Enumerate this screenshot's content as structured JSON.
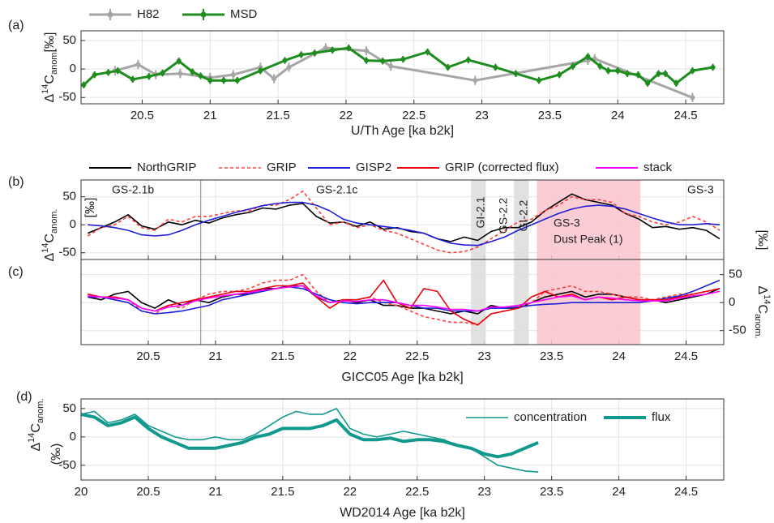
{
  "chart_data": [
    {
      "type": "line",
      "panel_label": "(a)",
      "xlabel": "U/Th Age [ka b2k]",
      "ylabel": {
        "parts": [
          "Δ",
          "14",
          "C",
          "anom."
        ],
        "unit": "[‰]"
      },
      "xlim": [
        20.05,
        24.78
      ],
      "xticks": [
        20.5,
        21,
        21.5,
        22,
        22.5,
        23,
        23.5,
        24,
        24.5
      ],
      "ylim": [
        -61,
        67
      ],
      "yticks": [
        -50,
        0,
        50
      ],
      "grid": true,
      "legend": "top",
      "series": [
        {
          "name": "H82",
          "color": "#a6a6a6",
          "error": 8,
          "x": [
            20.3,
            20.47,
            20.6,
            20.78,
            21.0,
            21.17,
            21.37,
            21.47,
            21.58,
            21.85,
            22.15,
            22.33,
            22.95,
            23.78,
            23.83,
            24.55
          ],
          "values": [
            -3,
            8,
            -10,
            -8,
            -15,
            -10,
            3,
            -17,
            3,
            37,
            32,
            5,
            -20,
            15,
            18,
            -50
          ]
        },
        {
          "name": "MSD",
          "color": "#1e8c1e",
          "error": 6,
          "x": [
            20.07,
            20.15,
            20.25,
            20.32,
            20.43,
            20.55,
            20.65,
            20.77,
            20.87,
            20.93,
            21.0,
            21.1,
            21.2,
            21.37,
            21.55,
            21.67,
            21.77,
            21.9,
            22.02,
            22.15,
            22.27,
            22.42,
            22.6,
            22.75,
            22.9,
            23.1,
            23.25,
            23.42,
            23.57,
            23.67,
            23.78,
            23.87,
            23.93,
            24.0,
            24.07,
            24.15,
            24.22,
            24.3,
            24.35,
            24.43,
            24.55,
            24.7
          ],
          "values": [
            -28,
            -10,
            -6,
            -3,
            -18,
            -13,
            -7,
            14,
            -5,
            -12,
            -20,
            -20,
            -20,
            -3,
            15,
            25,
            28,
            33,
            37,
            15,
            14,
            17,
            30,
            3,
            16,
            3,
            -8,
            -20,
            -10,
            5,
            22,
            5,
            -3,
            -3,
            -8,
            -10,
            -25,
            -8,
            -8,
            -25,
            -3,
            3
          ]
        }
      ]
    },
    {
      "type": "line",
      "panel_labels": [
        "(b)",
        "(c)"
      ],
      "xlabel": "GICC05 Age [ka b2k]",
      "ylabel": {
        "parts": [
          "Δ",
          "14",
          "C",
          "anom."
        ],
        "unit": "[‰]"
      },
      "y2label": {
        "parts": [
          "Δ",
          "14",
          "C",
          "anom."
        ],
        "unit": "[‰]"
      },
      "xlim": [
        20,
        24.78
      ],
      "xticks": [
        20.5,
        21,
        21.5,
        22,
        22.5,
        23,
        23.5,
        24,
        24.5
      ],
      "ylim": [
        -62,
        80
      ],
      "yticks": [
        -50,
        0,
        50
      ],
      "y2lim": [
        -75,
        77
      ],
      "y2ticks": [
        -50,
        0,
        50
      ],
      "grid": true,
      "boundary": 20.89,
      "regions": [
        {
          "x": [
            22.9,
            23.01
          ],
          "color": "#dcdcdc"
        },
        {
          "x": [
            23.22,
            23.33
          ],
          "color": "#dcdcdc"
        },
        {
          "x": [
            23.39,
            24.16
          ],
          "color": "#f9c3cc"
        }
      ],
      "annotations": [
        "GS-2.1b",
        "GS-2.1c",
        "GS-3",
        "GI-2.1",
        "GS-2.2",
        "GI-2.2",
        "GS-3",
        "Dust Peak (1)"
      ],
      "x": [
        20.05,
        20.15,
        20.25,
        20.35,
        20.45,
        20.55,
        20.65,
        20.75,
        20.85,
        20.95,
        21.05,
        21.15,
        21.25,
        21.35,
        21.45,
        21.55,
        21.65,
        21.75,
        21.85,
        21.95,
        22.05,
        22.15,
        22.25,
        22.35,
        22.45,
        22.55,
        22.65,
        22.75,
        22.85,
        22.95,
        23.05,
        23.15,
        23.25,
        23.35,
        23.45,
        23.55,
        23.65,
        23.75,
        23.85,
        23.95,
        24.05,
        24.15,
        24.25,
        24.35,
        24.45,
        24.55,
        24.65,
        24.75
      ],
      "series": [
        {
          "color": "#000000",
          "axis": "y",
          "values": [
            -15,
            -5,
            5,
            18,
            -2,
            -8,
            5,
            0,
            8,
            3,
            12,
            18,
            22,
            30,
            28,
            35,
            38,
            15,
            3,
            5,
            -3,
            5,
            -8,
            -5,
            -12,
            -15,
            -25,
            -30,
            -22,
            -28,
            -12,
            -5,
            -5,
            5,
            25,
            40,
            55,
            45,
            40,
            35,
            20,
            10,
            -5,
            -3,
            -8,
            -5,
            -10,
            -25
          ]
        },
        {
          "color": "#ff3b3b",
          "axis": "y",
          "dashed": true,
          "values": [
            -20,
            -5,
            0,
            15,
            -5,
            -10,
            10,
            5,
            15,
            15,
            20,
            25,
            25,
            35,
            35,
            45,
            60,
            30,
            0,
            5,
            -5,
            0,
            -10,
            -15,
            -25,
            -35,
            -45,
            -50,
            -48,
            -40,
            -25,
            -10,
            5,
            10,
            25,
            35,
            50,
            45,
            45,
            40,
            20,
            15,
            5,
            0,
            5,
            15,
            5,
            -10
          ]
        },
        {
          "color": "#1f1fd6",
          "axis": "y",
          "values": [
            0,
            -2,
            -5,
            -10,
            -18,
            -20,
            -18,
            -10,
            0,
            8,
            15,
            22,
            28,
            34,
            38,
            40,
            40,
            35,
            25,
            10,
            3,
            0,
            -3,
            -6,
            -10,
            -15,
            -25,
            -33,
            -36,
            -37,
            -30,
            -22,
            -10,
            0,
            10,
            20,
            28,
            33,
            35,
            33,
            28,
            20,
            12,
            5,
            0,
            0,
            2,
            0
          ]
        },
        {
          "name": "NorthGRIP",
          "color": "#000000",
          "axis": "y2",
          "values": [
            10,
            5,
            15,
            20,
            0,
            -10,
            5,
            -5,
            5,
            0,
            10,
            15,
            15,
            25,
            25,
            30,
            30,
            10,
            0,
            5,
            0,
            5,
            -5,
            -5,
            -10,
            -10,
            -15,
            -20,
            -15,
            -20,
            -5,
            -10,
            -10,
            0,
            10,
            15,
            20,
            10,
            15,
            15,
            10,
            5,
            5,
            0,
            5,
            10,
            15,
            25
          ]
        },
        {
          "name": "GRIP",
          "color": "#ff3b3b",
          "axis": "y2",
          "dashed": true,
          "values": [
            15,
            10,
            10,
            5,
            -15,
            -20,
            -5,
            -10,
            5,
            15,
            20,
            20,
            25,
            35,
            40,
            40,
            50,
            20,
            0,
            5,
            5,
            10,
            0,
            -5,
            -15,
            -25,
            -30,
            -35,
            -35,
            -40,
            -20,
            -15,
            -10,
            0,
            20,
            25,
            30,
            20,
            20,
            15,
            10,
            10,
            5,
            10,
            15,
            15,
            20,
            25
          ]
        },
        {
          "name": "GISP2",
          "color": "#1f1fd6",
          "axis": "y2",
          "values": [
            10,
            10,
            5,
            0,
            -15,
            -20,
            -18,
            -15,
            -10,
            -5,
            5,
            10,
            15,
            20,
            25,
            28,
            25,
            15,
            5,
            0,
            -2,
            0,
            0,
            0,
            -5,
            -10,
            -10,
            -15,
            -15,
            -15,
            -10,
            -10,
            -8,
            -5,
            -3,
            -2,
            0,
            0,
            0,
            0,
            0,
            0,
            3,
            8,
            12,
            20,
            30,
            40
          ]
        },
        {
          "name": "GRIP (corrected flux)",
          "color": "#e8000b",
          "axis": "y2",
          "values": [
            15,
            10,
            10,
            5,
            -10,
            -15,
            -5,
            0,
            5,
            10,
            15,
            20,
            20,
            25,
            30,
            30,
            35,
            10,
            -10,
            5,
            5,
            10,
            40,
            0,
            -10,
            25,
            20,
            -15,
            -30,
            -40,
            -20,
            -15,
            -10,
            10,
            20,
            10,
            15,
            5,
            10,
            5,
            10,
            5,
            5,
            5,
            10,
            15,
            20,
            25
          ]
        },
        {
          "name": "stack",
          "color": "#ff00ff",
          "axis": "y2",
          "values": [
            12,
            10,
            8,
            5,
            -10,
            -15,
            -8,
            -5,
            3,
            8,
            12,
            15,
            18,
            22,
            25,
            28,
            30,
            12,
            0,
            3,
            2,
            5,
            5,
            0,
            -5,
            -5,
            -8,
            -12,
            -12,
            -15,
            -8,
            -8,
            -5,
            0,
            5,
            10,
            12,
            5,
            10,
            8,
            5,
            3,
            3,
            3,
            8,
            12,
            15,
            20
          ]
        }
      ]
    },
    {
      "type": "line",
      "panel_label": "(d)",
      "xlabel": "WD2014 Age [ka b2k]",
      "ylabel": {
        "parts": [
          "Δ",
          "14",
          "C",
          "anom."
        ],
        "unit": "(‰)"
      },
      "xlim": [
        20,
        24.78
      ],
      "xticks": [
        20,
        20.5,
        21,
        21.5,
        22,
        22.5,
        23,
        23.5,
        24,
        24.5
      ],
      "ylim": [
        -76,
        67
      ],
      "yticks": [
        -50,
        0,
        50
      ],
      "grid": true,
      "legend": "upper right",
      "x": [
        20.0,
        20.1,
        20.2,
        20.3,
        20.4,
        20.5,
        20.6,
        20.7,
        20.8,
        20.9,
        21.0,
        21.1,
        21.2,
        21.3,
        21.4,
        21.5,
        21.6,
        21.7,
        21.8,
        21.9,
        22.0,
        22.1,
        22.2,
        22.3,
        22.4,
        22.5,
        22.6,
        22.7,
        22.8,
        22.9,
        23.0,
        23.1,
        23.2,
        23.3,
        23.4
      ],
      "series": [
        {
          "name": "concentration",
          "color": "#12998e",
          "values": [
            40,
            45,
            25,
            30,
            40,
            20,
            10,
            0,
            -5,
            -5,
            0,
            -5,
            -5,
            5,
            20,
            35,
            45,
            40,
            40,
            50,
            15,
            5,
            0,
            5,
            10,
            5,
            0,
            -5,
            -15,
            -20,
            -35,
            -50,
            -55,
            -60,
            -62
          ]
        },
        {
          "name": "flux",
          "color": "#12998e",
          "values": [
            40,
            35,
            20,
            25,
            35,
            15,
            0,
            -10,
            -20,
            -20,
            -20,
            -15,
            -10,
            0,
            5,
            15,
            15,
            15,
            20,
            30,
            5,
            -5,
            -5,
            -2,
            -8,
            -5,
            -5,
            -8,
            -15,
            -20,
            -30,
            -35,
            -30,
            -20,
            -10
          ]
        }
      ]
    }
  ]
}
